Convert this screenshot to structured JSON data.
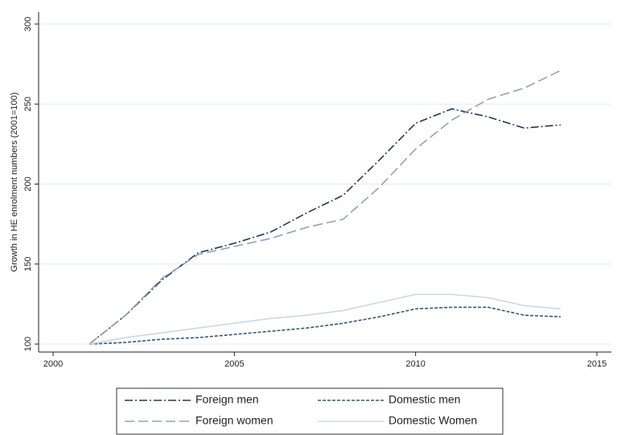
{
  "chart_data": {
    "type": "line",
    "ylabel": "Growth in HE enrolment numbers (2001=100)",
    "x": [
      2001,
      2002,
      2003,
      2004,
      2005,
      2006,
      2007,
      2008,
      2009,
      2010,
      2011,
      2012,
      2013,
      2014
    ],
    "series": [
      {
        "name": "Foreign men",
        "color": "#1f3a5a",
        "linestyle": "dashdot",
        "values": [
          100,
          118,
          140,
          157,
          163,
          170,
          182,
          193,
          215,
          238,
          247,
          242,
          235,
          237
        ]
      },
      {
        "name": "Domestic men",
        "color": "#2f5a7e",
        "linestyle": "dashed",
        "values": [
          100,
          101,
          103,
          104,
          106,
          108,
          110,
          113,
          117,
          122,
          123,
          123,
          118,
          117
        ]
      },
      {
        "name": "Foreign women",
        "color": "#8fa3b9",
        "linestyle": "longdash",
        "values": [
          100,
          118,
          141,
          156,
          161,
          166,
          173,
          178,
          198,
          222,
          240,
          253,
          260,
          271
        ]
      },
      {
        "name": "Domestic Women",
        "color": "#cbd8e3",
        "linestyle": "solid",
        "values": [
          100,
          104,
          107,
          110,
          113,
          116,
          118,
          121,
          126,
          131,
          131,
          129,
          124,
          122
        ]
      }
    ],
    "xlim": [
      1999.6,
      2015.4
    ],
    "ylim": [
      95,
      307.5
    ],
    "xticks": [
      2000,
      2005,
      2010,
      2015
    ],
    "yticks": [
      100,
      150,
      200,
      250,
      300
    ],
    "grid": true
  }
}
